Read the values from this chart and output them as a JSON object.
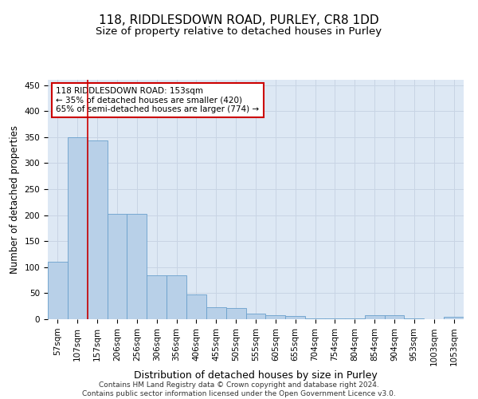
{
  "title": "118, RIDDLESDOWN ROAD, PURLEY, CR8 1DD",
  "subtitle": "Size of property relative to detached houses in Purley",
  "xlabel": "Distribution of detached houses by size in Purley",
  "ylabel": "Number of detached properties",
  "bar_labels": [
    "57sqm",
    "107sqm",
    "157sqm",
    "206sqm",
    "256sqm",
    "306sqm",
    "356sqm",
    "406sqm",
    "455sqm",
    "505sqm",
    "555sqm",
    "605sqm",
    "655sqm",
    "704sqm",
    "754sqm",
    "804sqm",
    "854sqm",
    "904sqm",
    "953sqm",
    "1003sqm",
    "1053sqm"
  ],
  "bar_values": [
    110,
    350,
    343,
    203,
    203,
    84,
    84,
    47,
    23,
    22,
    10,
    8,
    6,
    2,
    2,
    2,
    8,
    8,
    2,
    0,
    4
  ],
  "bar_color": "#b8d0e8",
  "bar_edge_color": "#6aa0cc",
  "vline_color": "#cc0000",
  "annotation_line1": "118 RIDDLESDOWN ROAD: 153sqm",
  "annotation_line2": "← 35% of detached houses are smaller (420)",
  "annotation_line3": "65% of semi-detached houses are larger (774) →",
  "annotation_box_color": "#ffffff",
  "annotation_box_edge": "#cc0000",
  "ylim": [
    0,
    460
  ],
  "yticks": [
    0,
    50,
    100,
    150,
    200,
    250,
    300,
    350,
    400,
    450
  ],
  "grid_color": "#c8d4e4",
  "background_color": "#dde8f4",
  "footer": "Contains HM Land Registry data © Crown copyright and database right 2024.\nContains public sector information licensed under the Open Government Licence v3.0.",
  "title_fontsize": 11,
  "subtitle_fontsize": 9.5,
  "xlabel_fontsize": 9,
  "ylabel_fontsize": 8.5,
  "tick_fontsize": 7.5,
  "annotation_fontsize": 7.5,
  "footer_fontsize": 6.5
}
